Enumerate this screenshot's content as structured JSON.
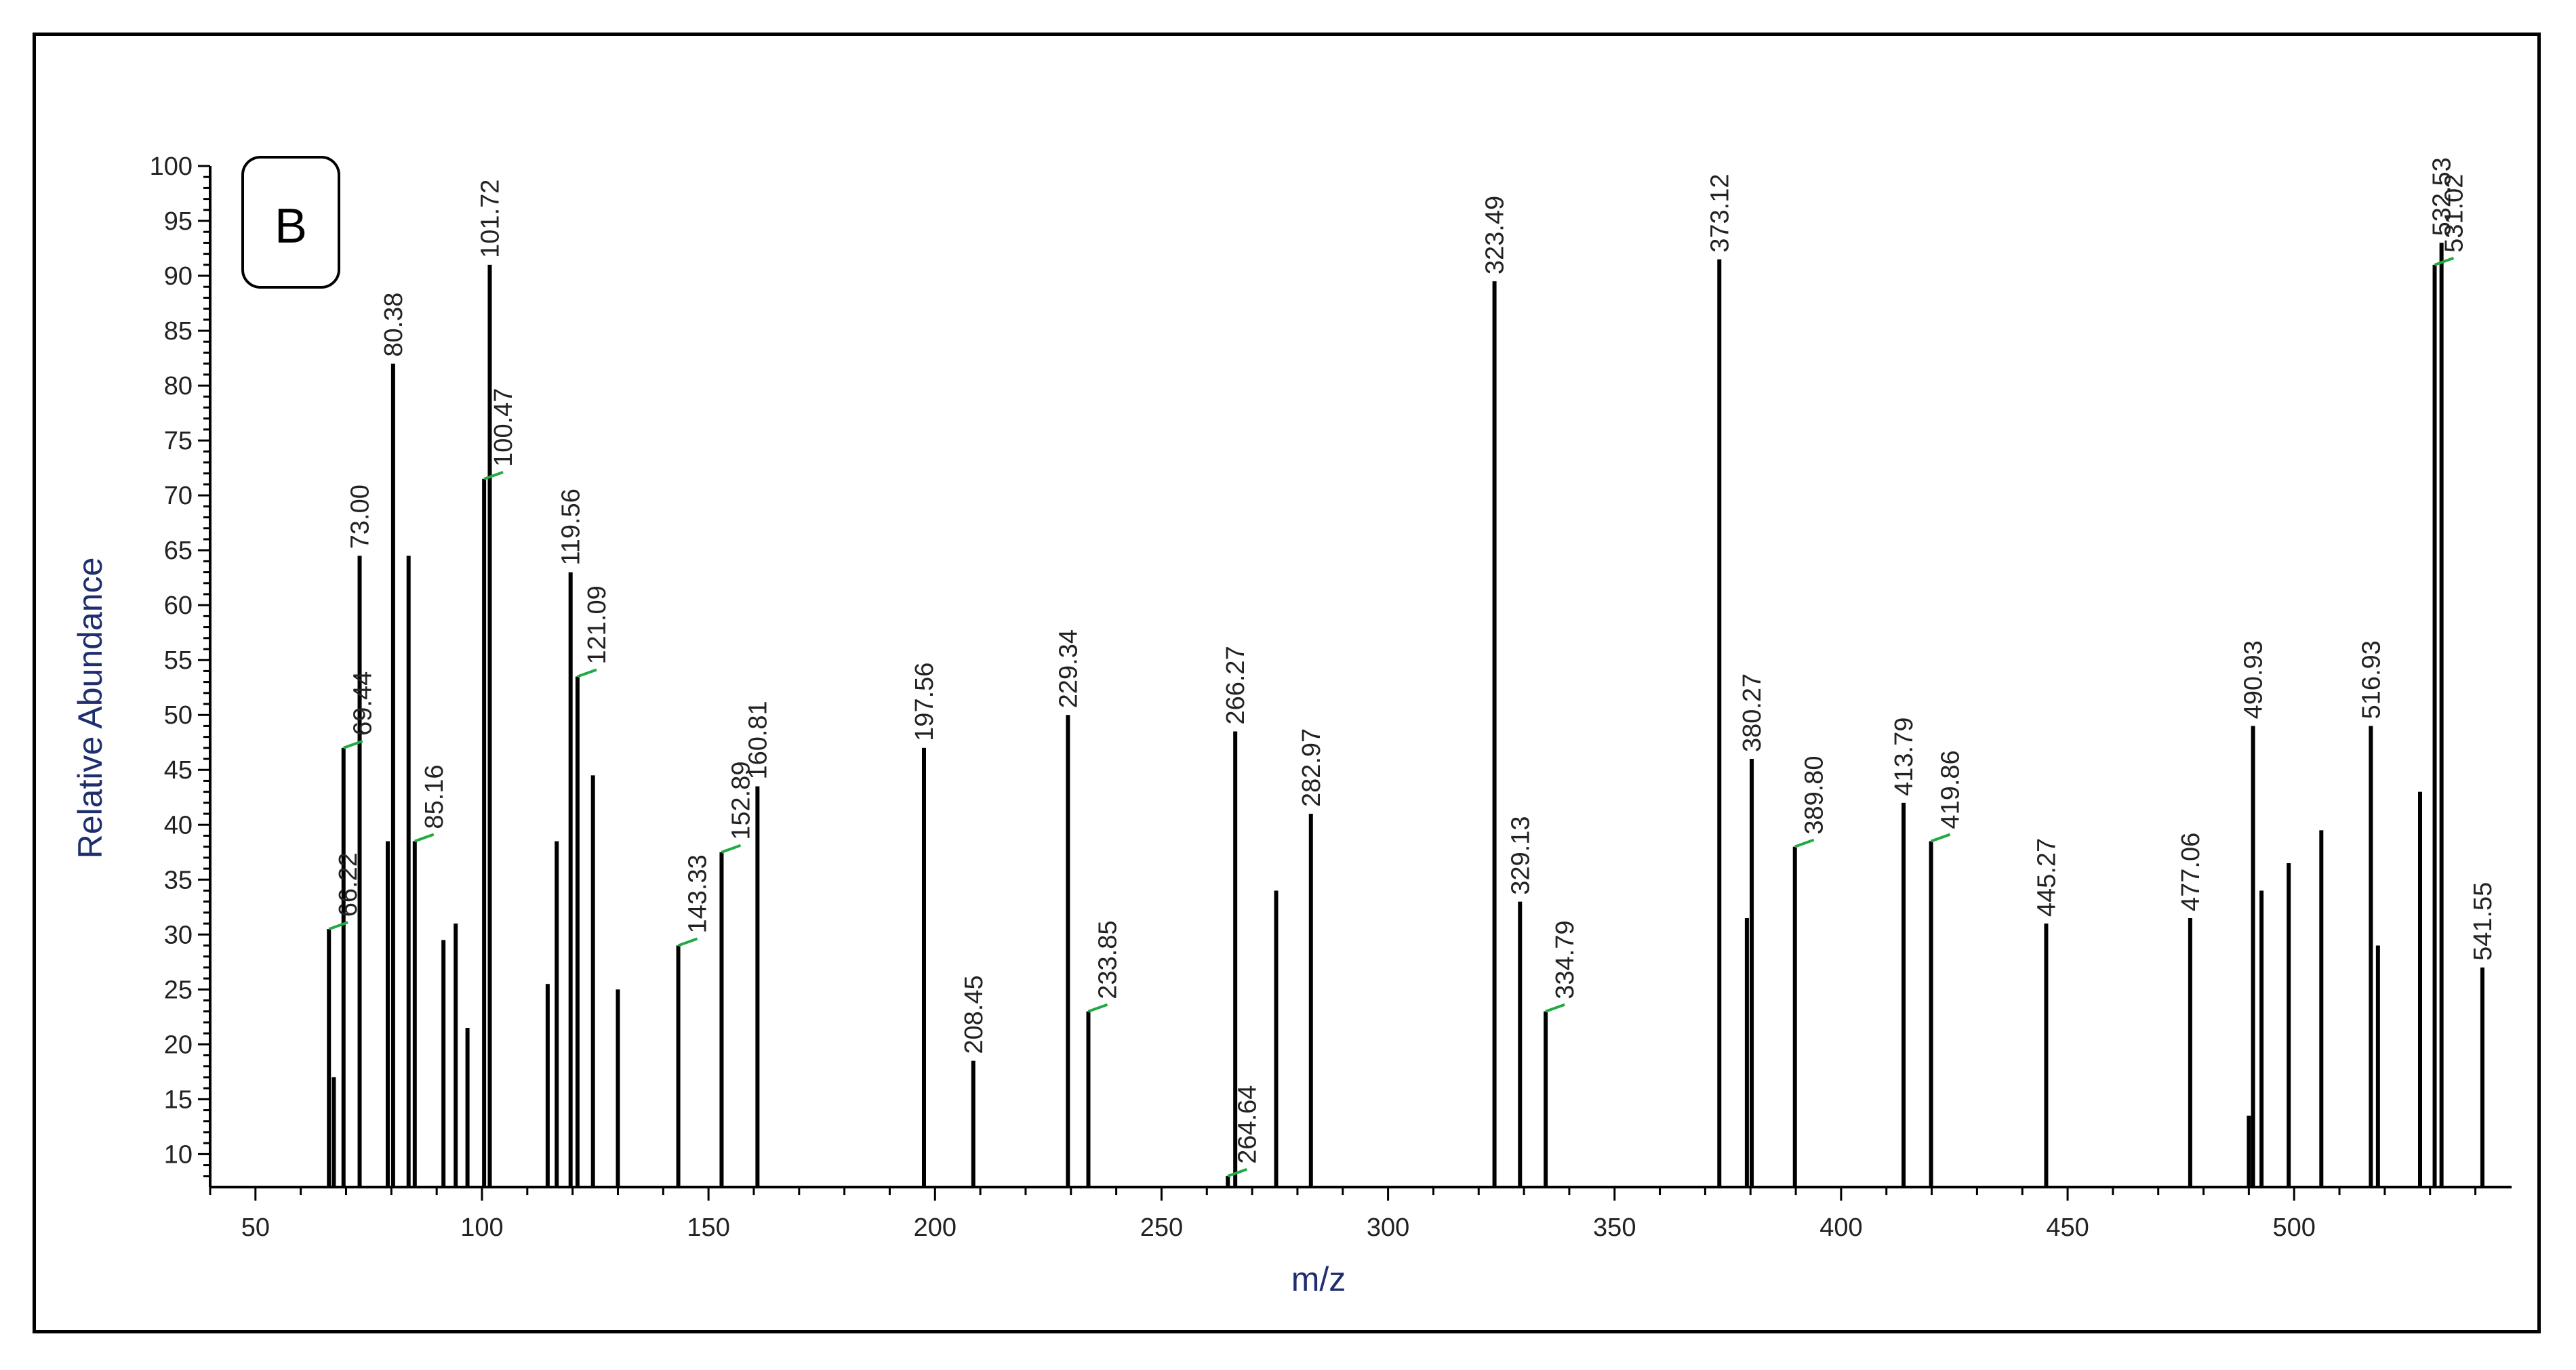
{
  "chart_data": {
    "type": "bar",
    "panel_label": "B",
    "title": "",
    "xlabel": "m/z",
    "ylabel": "Relative Abundance",
    "xlim": [
      40,
      548
    ],
    "ylim": [
      7,
      100
    ],
    "x_ticks": [
      50,
      100,
      150,
      200,
      250,
      300,
      350,
      400,
      450,
      500
    ],
    "y_ticks": [
      10,
      15,
      20,
      25,
      30,
      35,
      40,
      45,
      50,
      55,
      60,
      65,
      70,
      75,
      80,
      85,
      90,
      95,
      100
    ],
    "colors": {
      "bars": "#000000",
      "label_leader": "#22aa44",
      "axis_title": "#1f2f6e"
    },
    "peaks": [
      {
        "mz": 66.22,
        "abundance": 30.5,
        "label": "66.22",
        "leader": true
      },
      {
        "mz": 67.3,
        "abundance": 17.0
      },
      {
        "mz": 69.44,
        "abundance": 47,
        "label": "69.44",
        "leader": true
      },
      {
        "mz": 73.0,
        "abundance": 64.5,
        "label": "73.00"
      },
      {
        "mz": 79.2,
        "abundance": 38.5
      },
      {
        "mz": 80.38,
        "abundance": 82,
        "label": "80.38"
      },
      {
        "mz": 83.8,
        "abundance": 64.5
      },
      {
        "mz": 85.16,
        "abundance": 38.5,
        "label": "85.16",
        "leader": true
      },
      {
        "mz": 91.5,
        "abundance": 29.5
      },
      {
        "mz": 94.2,
        "abundance": 31
      },
      {
        "mz": 96.8,
        "abundance": 21.5
      },
      {
        "mz": 100.47,
        "abundance": 71.5,
        "label": "100.47",
        "leader": true
      },
      {
        "mz": 101.72,
        "abundance": 91,
        "label": "101.72"
      },
      {
        "mz": 114.5,
        "abundance": 25.5
      },
      {
        "mz": 116.5,
        "abundance": 38.5
      },
      {
        "mz": 119.56,
        "abundance": 63,
        "label": "119.56"
      },
      {
        "mz": 121.09,
        "abundance": 53.5,
        "label": "121.09",
        "leader": true
      },
      {
        "mz": 124.5,
        "abundance": 44.5
      },
      {
        "mz": 130.0,
        "abundance": 25
      },
      {
        "mz": 143.33,
        "abundance": 29,
        "label": "143.33",
        "leader": true
      },
      {
        "mz": 152.89,
        "abundance": 37.5,
        "label": "152.89",
        "leader": true
      },
      {
        "mz": 160.81,
        "abundance": 43.5,
        "label": "160.81"
      },
      {
        "mz": 197.56,
        "abundance": 47,
        "label": "197.56"
      },
      {
        "mz": 208.45,
        "abundance": 18.5,
        "label": "208.45"
      },
      {
        "mz": 229.34,
        "abundance": 50,
        "label": "229.34"
      },
      {
        "mz": 233.85,
        "abundance": 23,
        "label": "233.85",
        "leader": true
      },
      {
        "mz": 264.64,
        "abundance": 8,
        "label": "264.64",
        "leader": true
      },
      {
        "mz": 266.27,
        "abundance": 48.5,
        "label": "266.27"
      },
      {
        "mz": 275.3,
        "abundance": 34
      },
      {
        "mz": 282.97,
        "abundance": 41,
        "label": "282.97"
      },
      {
        "mz": 323.49,
        "abundance": 89.5,
        "label": "323.49"
      },
      {
        "mz": 329.13,
        "abundance": 33,
        "label": "329.13"
      },
      {
        "mz": 334.79,
        "abundance": 23,
        "label": "334.79",
        "leader": true
      },
      {
        "mz": 373.12,
        "abundance": 91.5,
        "label": "373.12"
      },
      {
        "mz": 379.2,
        "abundance": 31.5
      },
      {
        "mz": 380.27,
        "abundance": 46,
        "label": "380.27"
      },
      {
        "mz": 389.8,
        "abundance": 38,
        "label": "389.80",
        "leader": true
      },
      {
        "mz": 413.79,
        "abundance": 42,
        "label": "413.79"
      },
      {
        "mz": 419.86,
        "abundance": 38.5,
        "label": "419.86",
        "leader": true
      },
      {
        "mz": 445.27,
        "abundance": 31,
        "label": "445.27"
      },
      {
        "mz": 477.06,
        "abundance": 31.5,
        "label": "477.06"
      },
      {
        "mz": 490.0,
        "abundance": 13.5
      },
      {
        "mz": 490.93,
        "abundance": 49,
        "label": "490.93"
      },
      {
        "mz": 492.8,
        "abundance": 34
      },
      {
        "mz": 498.8,
        "abundance": 36.5
      },
      {
        "mz": 506.0,
        "abundance": 39.5
      },
      {
        "mz": 516.93,
        "abundance": 49,
        "label": "516.93"
      },
      {
        "mz": 518.5,
        "abundance": 29
      },
      {
        "mz": 527.8,
        "abundance": 43
      },
      {
        "mz": 531.02,
        "abundance": 91,
        "label": "531.02",
        "leader": true
      },
      {
        "mz": 532.53,
        "abundance": 93,
        "label": "532.53"
      },
      {
        "mz": 541.55,
        "abundance": 27,
        "label": "541.55"
      }
    ]
  }
}
